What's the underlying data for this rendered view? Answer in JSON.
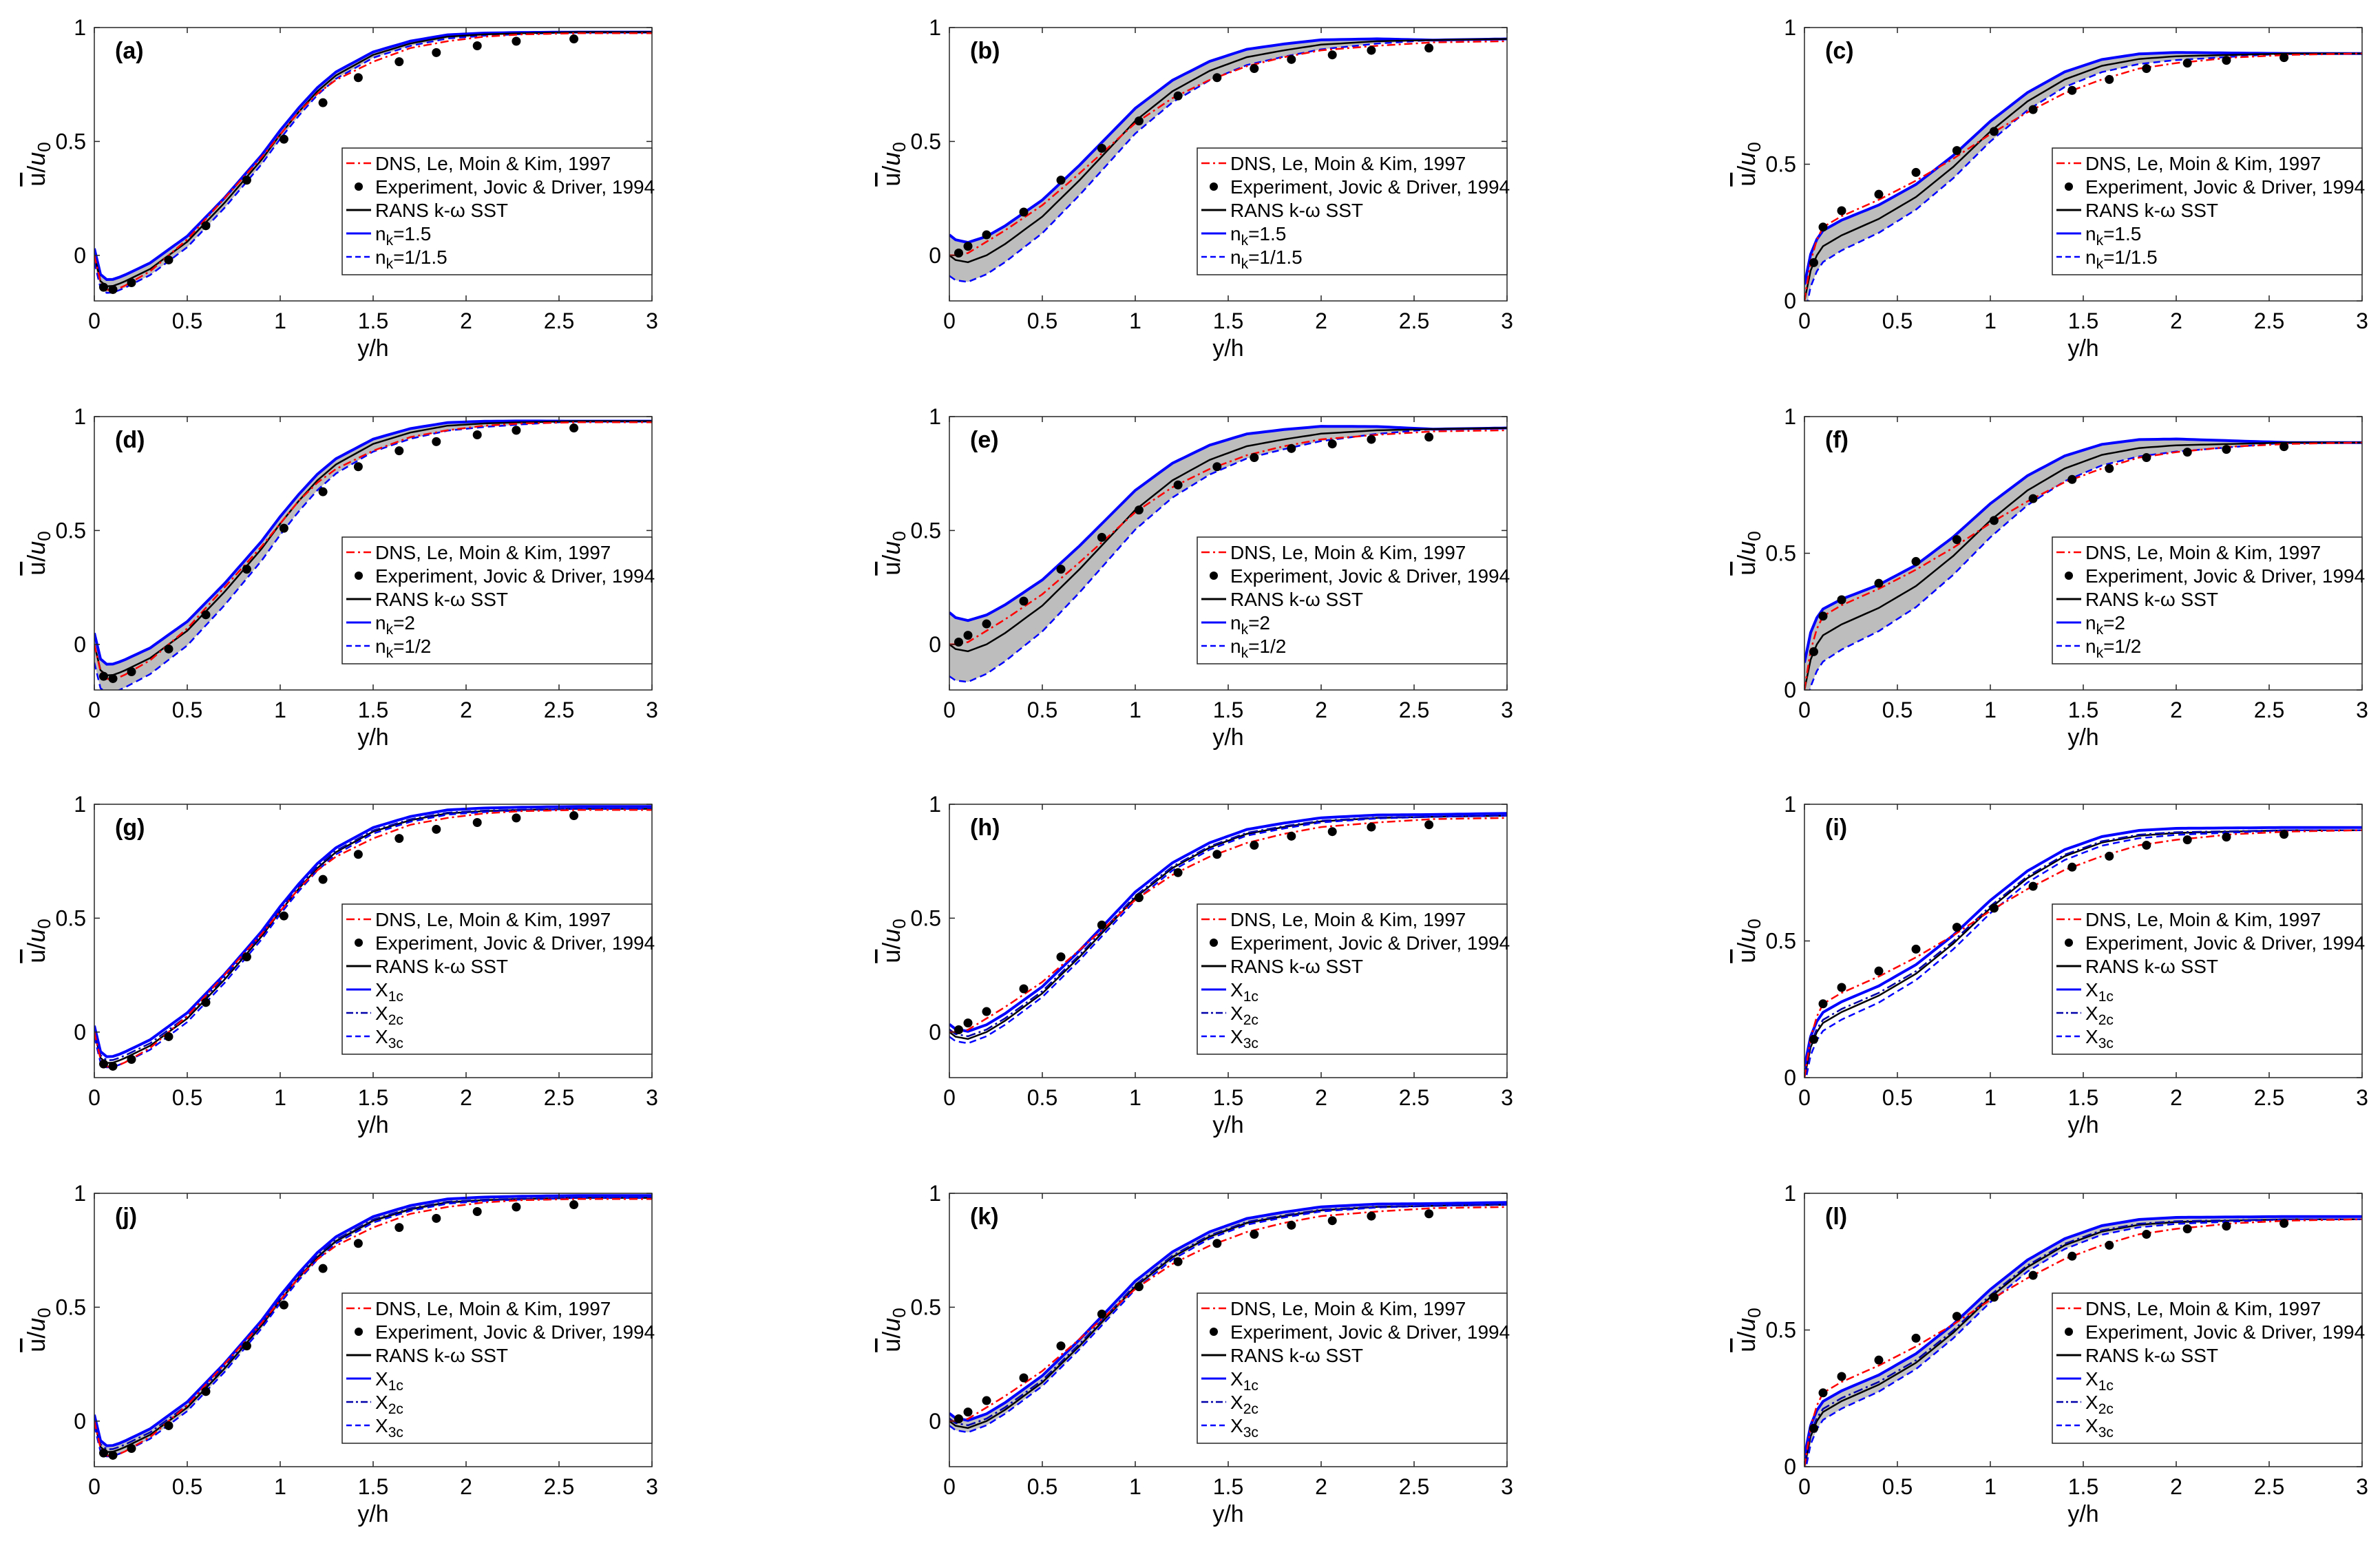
{
  "figure": {
    "xlabel": "y/h",
    "ylabel_main": "u",
    "ylabel_den": "u",
    "ylabel_sub": "0",
    "x_ticks": [
      "0",
      "0.5",
      "1",
      "1.5",
      "2",
      "2.5",
      "3"
    ]
  },
  "colors": {
    "dns": "#ff0000",
    "exp": "#000000",
    "rans": "#000000",
    "blue": "#0000ff",
    "shade": "#bdbdbd"
  },
  "legends": {
    "nk15": [
      {
        "key": "dns",
        "text": "DNS, Le, Moin & Kim, 1997"
      },
      {
        "key": "exp",
        "text": "Experiment, Jovic & Driver, 1994"
      },
      {
        "key": "rans",
        "text": "RANS k-ω SST"
      },
      {
        "key": "b1",
        "text": "n",
        "sub": "k",
        "rest": "=1.5"
      },
      {
        "key": "b2",
        "text": "n",
        "sub": "k",
        "rest": "=1/1.5"
      }
    ],
    "nk2": [
      {
        "key": "dns",
        "text": "DNS, Le, Moin & Kim, 1997"
      },
      {
        "key": "exp",
        "text": "Experiment, Jovic & Driver, 1994"
      },
      {
        "key": "rans",
        "text": "RANS k-ω SST"
      },
      {
        "key": "b1",
        "text": "n",
        "sub": "k",
        "rest": "=2"
      },
      {
        "key": "b2",
        "text": "n",
        "sub": "k",
        "rest": "=1/2"
      }
    ],
    "xc": [
      {
        "key": "dns",
        "text": "DNS, Le, Moin & Kim, 1997"
      },
      {
        "key": "exp",
        "text": "Experiment, Jovic & Driver, 1994"
      },
      {
        "key": "rans",
        "text": "RANS k-ω SST"
      },
      {
        "key": "x1",
        "text": "X",
        "sub": "1c",
        "rest": ""
      },
      {
        "key": "x2",
        "text": "X",
        "sub": "2c",
        "rest": ""
      },
      {
        "key": "x3",
        "text": "X",
        "sub": "3c",
        "rest": ""
      }
    ]
  },
  "chart_data": [
    {
      "label": "(a)",
      "type": "line",
      "legend": "nk15",
      "xlim": [
        0,
        3
      ],
      "ylim": [
        -0.2,
        1
      ],
      "yticks": [
        "0",
        "0.5",
        "1"
      ],
      "xlabel": "y/h"
    },
    {
      "label": "(b)",
      "type": "line",
      "legend": "nk15",
      "xlim": [
        0,
        3
      ],
      "ylim": [
        -0.2,
        1
      ],
      "yticks": [
        "0",
        "0.5",
        "1"
      ],
      "xlabel": "y/h"
    },
    {
      "label": "(c)",
      "type": "line",
      "legend": "nk15",
      "xlim": [
        0,
        3
      ],
      "ylim": [
        0,
        1
      ],
      "yticks": [
        "0",
        "0.5",
        "1"
      ],
      "xlabel": "y/h"
    },
    {
      "label": "(d)",
      "type": "line",
      "legend": "nk2",
      "xlim": [
        0,
        3
      ],
      "ylim": [
        -0.2,
        1
      ],
      "yticks": [
        "0",
        "0.5",
        "1"
      ],
      "xlabel": "y/h"
    },
    {
      "label": "(e)",
      "type": "line",
      "legend": "nk2",
      "xlim": [
        0,
        3
      ],
      "ylim": [
        -0.2,
        1
      ],
      "yticks": [
        "0",
        "0.5",
        "1"
      ],
      "xlabel": "y/h"
    },
    {
      "label": "(f)",
      "type": "line",
      "legend": "nk2",
      "xlim": [
        0,
        3
      ],
      "ylim": [
        0,
        1
      ],
      "yticks": [
        "0",
        "0.5",
        "1"
      ],
      "xlabel": "y/h"
    },
    {
      "label": "(g)",
      "type": "line",
      "legend": "xc",
      "xlim": [
        0,
        3
      ],
      "ylim": [
        -0.2,
        1
      ],
      "yticks": [
        "0",
        "0.5",
        "1"
      ],
      "xlabel": "y/h"
    },
    {
      "label": "(h)",
      "type": "line",
      "legend": "xc",
      "xlim": [
        0,
        3
      ],
      "ylim": [
        -0.2,
        1
      ],
      "yticks": [
        "0",
        "0.5",
        "1"
      ],
      "xlabel": "y/h"
    },
    {
      "label": "(i)",
      "type": "line",
      "legend": "xc",
      "xlim": [
        0,
        3
      ],
      "ylim": [
        0,
        1
      ],
      "yticks": [
        "0",
        "0.5",
        "1"
      ],
      "xlabel": "y/h"
    },
    {
      "label": "(j)",
      "type": "line",
      "legend": "xc",
      "xlim": [
        0,
        3
      ],
      "ylim": [
        -0.2,
        1
      ],
      "yticks": [
        "0",
        "0.5",
        "1"
      ],
      "xlabel": "y/h"
    },
    {
      "label": "(k)",
      "type": "line",
      "legend": "xc",
      "xlim": [
        0,
        3
      ],
      "ylim": [
        -0.2,
        1
      ],
      "yticks": [
        "0",
        "0.5",
        "1"
      ],
      "xlabel": "y/h"
    },
    {
      "label": "(l)",
      "type": "line",
      "legend": "xc",
      "xlim": [
        0,
        3
      ],
      "ylim": [
        0,
        1
      ],
      "yticks": [
        "0",
        "0.5",
        "1"
      ],
      "xlabel": "y/h"
    }
  ],
  "stations": [
    {
      "name": "station-1",
      "experiment": {
        "x": [
          0.05,
          0.1,
          0.2,
          0.4,
          0.6,
          0.82,
          1.02,
          1.23,
          1.42,
          1.64,
          1.84,
          2.06,
          2.27,
          2.58
        ],
        "y": [
          -0.14,
          -0.15,
          -0.12,
          -0.02,
          0.13,
          0.33,
          0.51,
          0.67,
          0.78,
          0.85,
          0.89,
          0.92,
          0.94,
          0.95
        ]
      },
      "dns": {
        "x": [
          0,
          0.02,
          0.05,
          0.08,
          0.15,
          0.3,
          0.5,
          0.7,
          0.9,
          1.0,
          1.1,
          1.2,
          1.3,
          1.5,
          1.7,
          1.9,
          2.1,
          2.3,
          2.6,
          3.0
        ],
        "y": [
          0.0,
          -0.1,
          -0.14,
          -0.16,
          -0.14,
          -0.07,
          0.07,
          0.25,
          0.43,
          0.53,
          0.63,
          0.71,
          0.77,
          0.85,
          0.91,
          0.94,
          0.96,
          0.97,
          0.975,
          0.975
        ]
      },
      "rans": {
        "x": [
          0,
          0.02,
          0.05,
          0.08,
          0.15,
          0.3,
          0.5,
          0.7,
          0.9,
          1.0,
          1.1,
          1.2,
          1.3,
          1.5,
          1.7,
          1.9,
          2.1,
          2.3,
          2.6,
          3.0
        ],
        "y": [
          0.0,
          -0.1,
          -0.13,
          -0.14,
          -0.12,
          -0.06,
          0.06,
          0.23,
          0.42,
          0.53,
          0.63,
          0.72,
          0.79,
          0.88,
          0.93,
          0.96,
          0.97,
          0.975,
          0.98,
          0.98
        ]
      }
    },
    {
      "name": "station-2",
      "experiment": {
        "x": [
          0.05,
          0.1,
          0.2,
          0.4,
          0.6,
          0.82,
          1.02,
          1.23,
          1.44,
          1.64,
          1.84,
          2.06,
          2.27,
          2.58
        ],
        "y": [
          0.01,
          0.04,
          0.09,
          0.19,
          0.33,
          0.47,
          0.59,
          0.7,
          0.78,
          0.82,
          0.86,
          0.88,
          0.9,
          0.91
        ]
      },
      "dns": {
        "x": [
          0,
          0.03,
          0.1,
          0.2,
          0.3,
          0.5,
          0.7,
          0.85,
          1.0,
          1.2,
          1.4,
          1.6,
          1.8,
          2.0,
          2.3,
          2.6,
          3.0
        ],
        "y": [
          0.0,
          0.0,
          0.01,
          0.06,
          0.11,
          0.22,
          0.36,
          0.47,
          0.58,
          0.69,
          0.77,
          0.83,
          0.87,
          0.9,
          0.92,
          0.935,
          0.94
        ]
      },
      "rans": {
        "x": [
          0,
          0.03,
          0.1,
          0.2,
          0.3,
          0.5,
          0.7,
          0.85,
          1.0,
          1.2,
          1.4,
          1.6,
          1.8,
          2.0,
          2.3,
          2.6,
          3.0
        ],
        "y": [
          0.0,
          -0.02,
          -0.03,
          0.0,
          0.05,
          0.17,
          0.33,
          0.46,
          0.59,
          0.72,
          0.81,
          0.87,
          0.9,
          0.925,
          0.94,
          0.945,
          0.95
        ]
      }
    },
    {
      "name": "station-3",
      "experiment": {
        "x": [
          0.05,
          0.1,
          0.2,
          0.4,
          0.6,
          0.82,
          1.02,
          1.23,
          1.44,
          1.64,
          1.84,
          2.06,
          2.27,
          2.58
        ],
        "y": [
          0.14,
          0.27,
          0.33,
          0.39,
          0.47,
          0.55,
          0.62,
          0.7,
          0.77,
          0.81,
          0.85,
          0.87,
          0.88,
          0.89
        ]
      },
      "dns": {
        "x": [
          0,
          0.02,
          0.05,
          0.1,
          0.2,
          0.4,
          0.6,
          0.8,
          1.0,
          1.2,
          1.4,
          1.6,
          1.8,
          2.0,
          2.3,
          2.6,
          3.0
        ],
        "y": [
          0.0,
          0.1,
          0.2,
          0.27,
          0.31,
          0.37,
          0.44,
          0.52,
          0.61,
          0.69,
          0.76,
          0.81,
          0.85,
          0.87,
          0.89,
          0.9,
          0.905
        ]
      },
      "rans": {
        "x": [
          0,
          0.02,
          0.05,
          0.1,
          0.2,
          0.4,
          0.6,
          0.8,
          1.0,
          1.2,
          1.4,
          1.6,
          1.8,
          2.0,
          2.3,
          2.6,
          3.0
        ],
        "y": [
          0.0,
          0.08,
          0.15,
          0.2,
          0.24,
          0.3,
          0.38,
          0.49,
          0.62,
          0.73,
          0.81,
          0.86,
          0.885,
          0.895,
          0.9,
          0.905,
          0.905
        ]
      }
    }
  ]
}
